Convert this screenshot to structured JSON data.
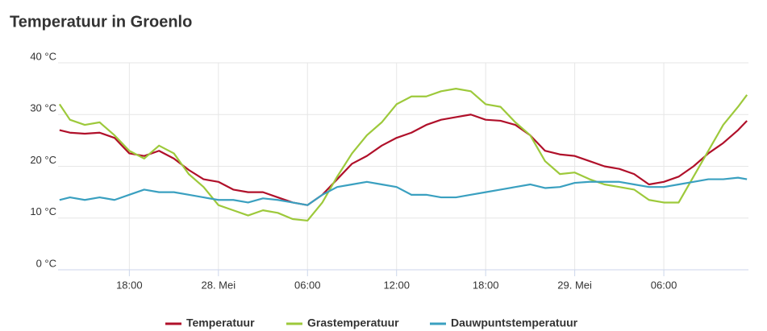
{
  "chart_data": {
    "type": "line",
    "title": "Temperatuur in Groenlo",
    "x": [
      13.3,
      14,
      15,
      16,
      17,
      18,
      19,
      20,
      21,
      22,
      23,
      24,
      25,
      26,
      27,
      28,
      29,
      30,
      31,
      32,
      33,
      34,
      35,
      36,
      37,
      38,
      39,
      40,
      41,
      42,
      43,
      44,
      45,
      46,
      47,
      48,
      49,
      50,
      51,
      52,
      53,
      54,
      55,
      56,
      57,
      58,
      59,
      59.6
    ],
    "series": [
      {
        "name": "Temperatuur",
        "color": "#b0102a",
        "values": [
          27,
          26.5,
          26.3,
          26.5,
          25.5,
          22.5,
          22,
          23,
          21.5,
          19.3,
          17.5,
          17,
          15.5,
          15,
          15,
          14,
          13,
          12.5,
          14.5,
          17.5,
          20.5,
          22,
          24,
          25.5,
          26.5,
          28,
          29,
          29.5,
          30,
          29,
          28.8,
          28,
          26,
          23,
          22.3,
          22,
          21,
          20,
          19.5,
          18.5,
          16.5,
          17,
          18,
          20,
          22.5,
          24.5,
          27,
          28.8
        ]
      },
      {
        "name": "Grastemperatuur",
        "color": "#9dc93b",
        "values": [
          32,
          29,
          28,
          28.5,
          26,
          23,
          21.5,
          24,
          22.5,
          18.5,
          16,
          12.5,
          11.5,
          10.5,
          11.5,
          11,
          9.8,
          9.5,
          13,
          18,
          22.5,
          26,
          28.5,
          32,
          33.5,
          33.5,
          34.5,
          35,
          34.5,
          32,
          31.5,
          28.5,
          26,
          21,
          18.5,
          18.8,
          17.5,
          16.5,
          16,
          15.5,
          13.5,
          13,
          13,
          18,
          23,
          28,
          31.5,
          33.8
        ]
      },
      {
        "name": "Dauwpuntstemperatuur",
        "color": "#3aa0c0",
        "values": [
          13.5,
          14,
          13.5,
          14,
          13.5,
          14.5,
          15.5,
          15,
          15,
          14.5,
          14,
          13.5,
          13.5,
          13,
          13.8,
          13.5,
          13,
          12.5,
          14.5,
          16,
          16.5,
          17,
          16.5,
          16,
          14.5,
          14.5,
          14,
          14,
          14.5,
          15,
          15.5,
          16,
          16.5,
          15.8,
          16,
          16.8,
          17,
          17,
          17,
          16.5,
          16,
          16,
          16.5,
          17,
          17.5,
          17.5,
          17.8,
          17.5
        ]
      }
    ],
    "xlim": [
      13.2,
      59.7
    ],
    "xticks": [
      {
        "value": 18,
        "label": "18:00"
      },
      {
        "value": 24,
        "label": "28. Mei"
      },
      {
        "value": 30,
        "label": "06:00"
      },
      {
        "value": 36,
        "label": "12:00"
      },
      {
        "value": 42,
        "label": "18:00"
      },
      {
        "value": 48,
        "label": "29. Mei"
      },
      {
        "value": 54,
        "label": "06:00"
      }
    ],
    "ylim": [
      0,
      40
    ],
    "yticks": [
      {
        "value": 0,
        "label": "0 °C"
      },
      {
        "value": 10,
        "label": "10 °C"
      },
      {
        "value": 20,
        "label": "20 °C"
      },
      {
        "value": 30,
        "label": "30 °C"
      },
      {
        "value": 40,
        "label": "40 °C"
      }
    ],
    "grid": true,
    "legend": "bottom"
  }
}
